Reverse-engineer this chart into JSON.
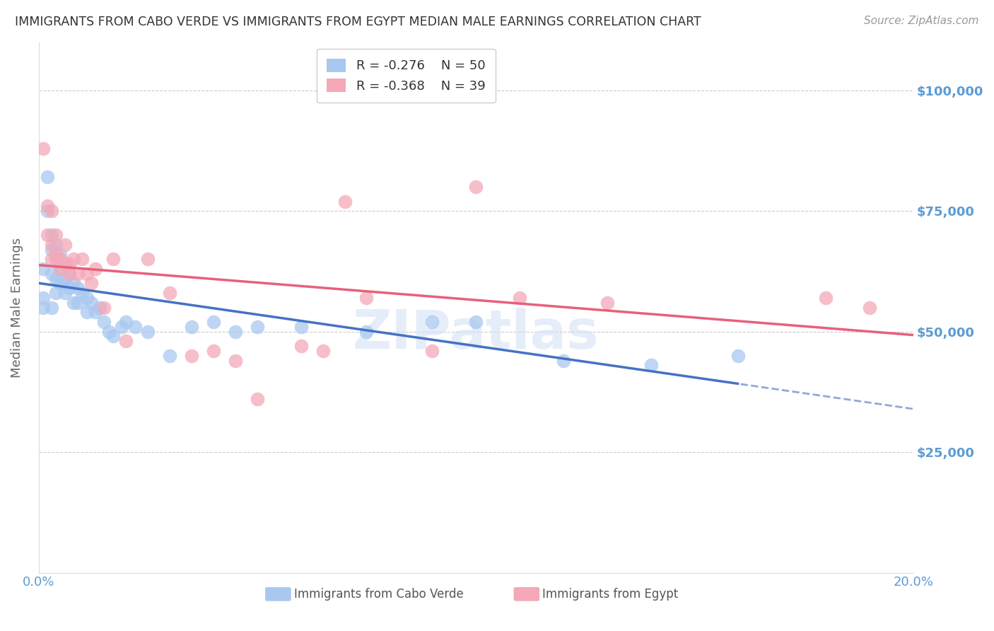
{
  "title": "IMMIGRANTS FROM CABO VERDE VS IMMIGRANTS FROM EGYPT MEDIAN MALE EARNINGS CORRELATION CHART",
  "source": "Source: ZipAtlas.com",
  "ylabel": "Median Male Earnings",
  "xlim": [
    0.0,
    0.2
  ],
  "ylim": [
    0,
    110000
  ],
  "yticks": [
    0,
    25000,
    50000,
    75000,
    100000
  ],
  "ytick_labels_right": [
    "",
    "$25,000",
    "$50,000",
    "$75,000",
    "$100,000"
  ],
  "xticks": [
    0.0,
    0.05,
    0.1,
    0.15,
    0.2
  ],
  "xtick_labels": [
    "0.0%",
    "",
    "",
    "",
    "20.0%"
  ],
  "watermark": "ZIPatlas",
  "R1": -0.276,
  "N1": 50,
  "R2": -0.368,
  "N2": 39,
  "label1": "Immigrants from Cabo Verde",
  "label2": "Immigrants from Egypt",
  "color1": "#a8c8f0",
  "color2": "#f4a8b8",
  "trend_color1": "#4472c4",
  "trend_color2": "#e8607a",
  "title_color": "#333333",
  "axis_color": "#5b9bd5",
  "grid_color": "#cccccc",
  "source_color": "#999999",
  "background_color": "#ffffff",
  "cabo_verde_x": [
    0.001,
    0.001,
    0.001,
    0.002,
    0.002,
    0.003,
    0.003,
    0.003,
    0.003,
    0.004,
    0.004,
    0.004,
    0.004,
    0.005,
    0.005,
    0.005,
    0.006,
    0.006,
    0.006,
    0.007,
    0.007,
    0.008,
    0.008,
    0.009,
    0.009,
    0.01,
    0.011,
    0.011,
    0.012,
    0.013,
    0.014,
    0.015,
    0.016,
    0.017,
    0.019,
    0.02,
    0.022,
    0.025,
    0.03,
    0.035,
    0.04,
    0.045,
    0.05,
    0.06,
    0.075,
    0.09,
    0.1,
    0.12,
    0.14,
    0.16
  ],
  "cabo_verde_y": [
    63000,
    57000,
    55000,
    82000,
    75000,
    70000,
    67000,
    62000,
    55000,
    68000,
    65000,
    61000,
    58000,
    66000,
    63000,
    60000,
    64000,
    61000,
    58000,
    62000,
    59000,
    60000,
    56000,
    59000,
    56000,
    58000,
    57000,
    54000,
    56000,
    54000,
    55000,
    52000,
    50000,
    49000,
    51000,
    52000,
    51000,
    50000,
    45000,
    51000,
    52000,
    50000,
    51000,
    51000,
    50000,
    52000,
    52000,
    44000,
    43000,
    45000
  ],
  "egypt_x": [
    0.001,
    0.002,
    0.002,
    0.003,
    0.003,
    0.003,
    0.004,
    0.004,
    0.005,
    0.005,
    0.006,
    0.006,
    0.007,
    0.007,
    0.008,
    0.009,
    0.01,
    0.011,
    0.012,
    0.013,
    0.015,
    0.017,
    0.02,
    0.025,
    0.03,
    0.035,
    0.04,
    0.045,
    0.05,
    0.06,
    0.065,
    0.07,
    0.075,
    0.09,
    0.1,
    0.11,
    0.13,
    0.18,
    0.19
  ],
  "egypt_y": [
    88000,
    76000,
    70000,
    75000,
    68000,
    65000,
    70000,
    66000,
    65000,
    63000,
    68000,
    64000,
    64000,
    62000,
    65000,
    62000,
    65000,
    62000,
    60000,
    63000,
    55000,
    65000,
    48000,
    65000,
    58000,
    45000,
    46000,
    44000,
    36000,
    47000,
    46000,
    77000,
    57000,
    46000,
    80000,
    57000,
    56000,
    57000,
    55000
  ]
}
